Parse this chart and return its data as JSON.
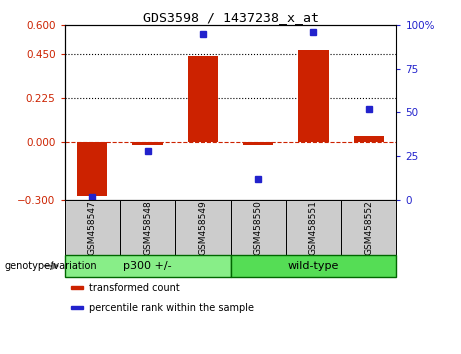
{
  "title": "GDS3598 / 1437238_x_at",
  "samples": [
    "GSM458547",
    "GSM458548",
    "GSM458549",
    "GSM458550",
    "GSM458551",
    "GSM458552"
  ],
  "bar_values": [
    -0.28,
    -0.02,
    0.44,
    -0.02,
    0.47,
    0.03
  ],
  "percentile_values": [
    2,
    28,
    95,
    12,
    96,
    52
  ],
  "bar_color": "#cc2200",
  "dot_color": "#2222cc",
  "ylim_left": [
    -0.3,
    0.6
  ],
  "ylim_right": [
    0,
    100
  ],
  "yticks_left": [
    -0.3,
    0,
    0.225,
    0.45,
    0.6
  ],
  "yticks_right": [
    0,
    25,
    50,
    75,
    100
  ],
  "hlines": [
    0.225,
    0.45
  ],
  "hline_zero_color": "#cc2200",
  "groups": [
    {
      "label": "p300 +/-",
      "span": [
        0,
        2
      ],
      "color": "#88ee88"
    },
    {
      "label": "wild-type",
      "span": [
        3,
        5
      ],
      "color": "#55dd55"
    }
  ],
  "genotype_label": "genotype/variation",
  "legend_items": [
    {
      "label": "transformed count",
      "color": "#cc2200"
    },
    {
      "label": "percentile rank within the sample",
      "color": "#2222cc"
    }
  ],
  "bar_width": 0.55,
  "tick_label_color_left": "#cc2200",
  "tick_label_color_right": "#2222cc",
  "sample_box_color": "#cccccc",
  "group_border_color": "#006600"
}
